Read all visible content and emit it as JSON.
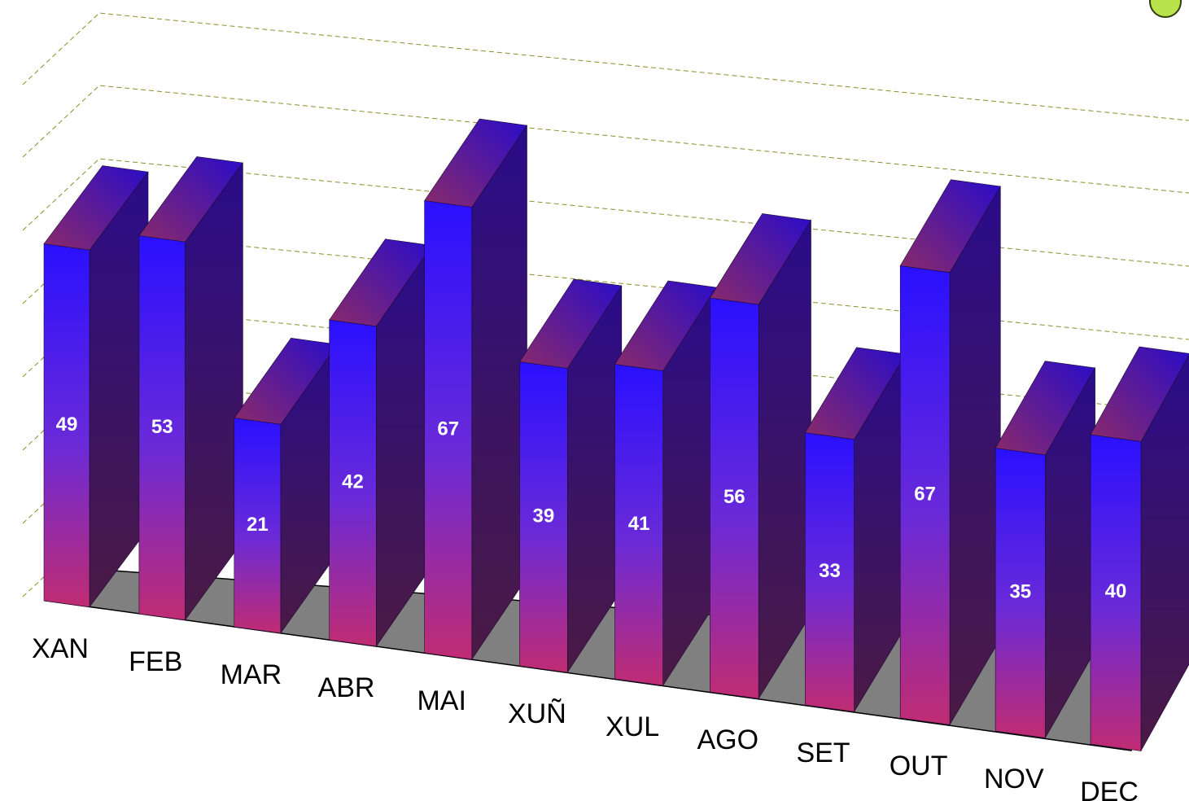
{
  "chart_data": {
    "type": "bar",
    "categories": [
      "XAN",
      "FEB",
      "MAR",
      "ABR",
      "MAI",
      "XUÑ",
      "XUL",
      "AGO",
      "SET",
      "OUT",
      "NOV",
      "DEC"
    ],
    "series": [
      {
        "values": [
          49,
          53,
          21,
          42,
          67,
          39,
          41,
          56,
          33,
          67,
          35,
          40
        ]
      }
    ],
    "data_labels": [
      "49",
      "53",
      "21",
      "42",
      "67",
      "39",
      "41",
      "56",
      "33",
      "67",
      "35",
      "40"
    ],
    "title": "",
    "xlabel": "",
    "ylabel": "",
    "ylim": [
      0,
      80
    ],
    "grid": true,
    "legend": "none",
    "style": "3d",
    "colors": {
      "bar_front_top": "#2a10ff",
      "bar_front_bottom": "#c02c72",
      "bar_top": "#7a2a7a",
      "bar_side": "#3a1660",
      "floor": "#808080",
      "grid": "#8c8c2a",
      "label_inside": "#ffffff",
      "category_label": "#000000"
    }
  }
}
